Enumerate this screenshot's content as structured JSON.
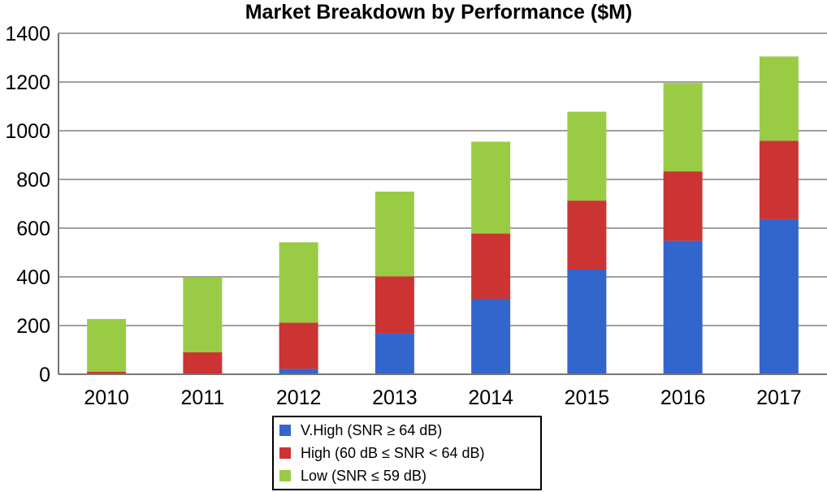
{
  "chart_data": {
    "type": "bar",
    "stacked": true,
    "title": "Market Breakdown by Performance ($M)",
    "xlabel": "",
    "ylabel": "",
    "categories": [
      "2010",
      "2011",
      "2012",
      "2013",
      "2014",
      "2015",
      "2016",
      "2017"
    ],
    "series": [
      {
        "name": "V.High (SNR ≥ 64 dB)",
        "color": "#3366CC",
        "values": [
          0,
          0,
          22,
          167,
          310,
          430,
          548,
          637
        ]
      },
      {
        "name": "High (60 dB ≤ SNR < 64 dB)",
        "color": "#CC3333",
        "values": [
          10,
          90,
          190,
          235,
          268,
          283,
          285,
          322
        ]
      },
      {
        "name": "Low (SNR ≤ 59 dB)",
        "color": "#99CC44",
        "values": [
          217,
          307,
          330,
          348,
          377,
          365,
          363,
          346
        ]
      }
    ],
    "ylim": [
      0,
      1400
    ],
    "yticks": [
      "0",
      "200",
      "400",
      "600",
      "800",
      "1000",
      "1200",
      "1400"
    ],
    "grid": true,
    "legend_position": "bottom"
  }
}
